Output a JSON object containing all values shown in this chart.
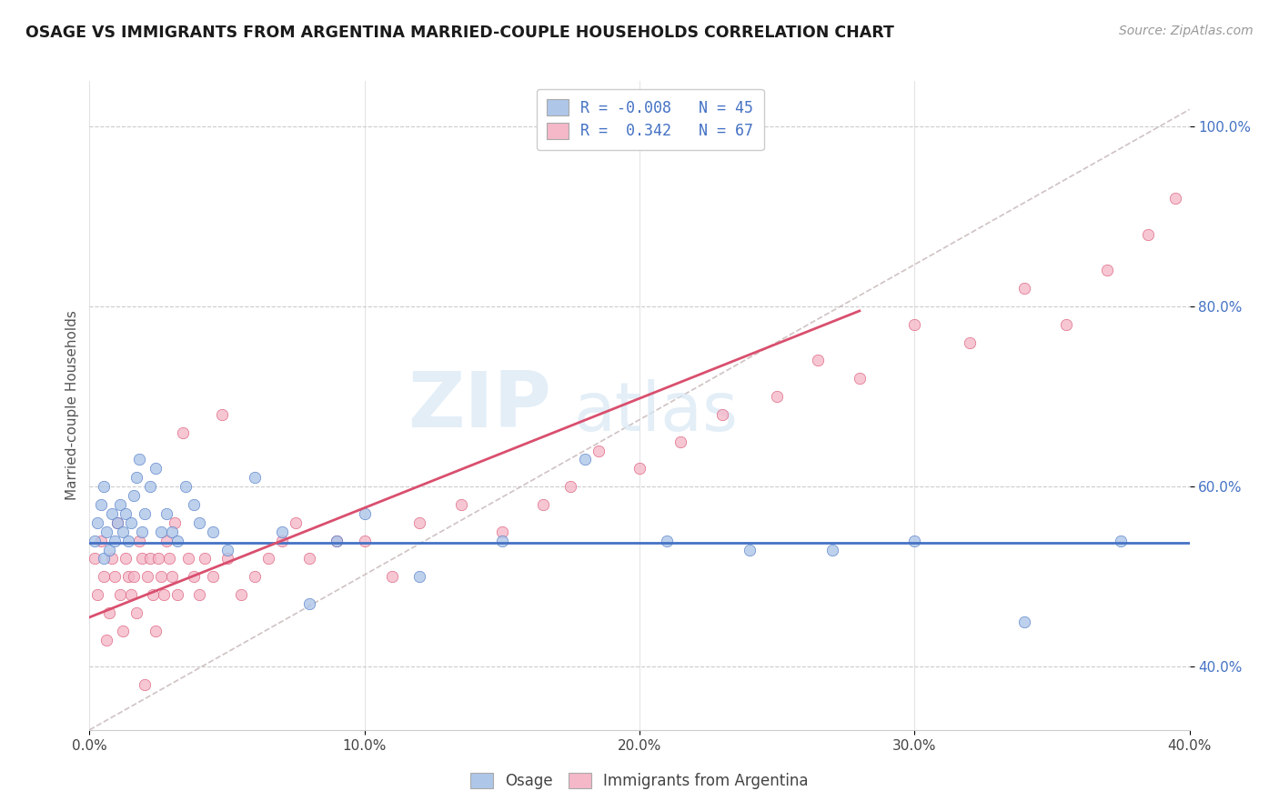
{
  "title": "OSAGE VS IMMIGRANTS FROM ARGENTINA MARRIED-COUPLE HOUSEHOLDS CORRELATION CHART",
  "source_text": "Source: ZipAtlas.com",
  "ylabel": "Married-couple Households",
  "legend_label_1": "Osage",
  "legend_label_2": "Immigrants from Argentina",
  "r1": -0.008,
  "n1": 45,
  "r2": 0.342,
  "n2": 67,
  "color1": "#aec6e8",
  "color2": "#f4b8c8",
  "line1_color": "#4472c4",
  "line2_color": "#d94f6e",
  "diag_color": "#c8b8b8",
  "watermark_zip": "ZIP",
  "watermark_atlas": "atlas",
  "xmin": 0.0,
  "xmax": 0.4,
  "ymin": 0.33,
  "ymax": 1.05,
  "yticks": [
    0.4,
    0.6,
    0.8,
    1.0
  ],
  "ytick_labels": [
    "40.0%",
    "60.0%",
    "80.0%",
    "100.0%"
  ],
  "xticks": [
    0.0,
    0.1,
    0.2,
    0.3,
    0.4
  ],
  "xtick_labels": [
    "0.0%",
    "10.0%",
    "20.0%",
    "30.0%",
    "40.0%"
  ],
  "osage_x": [
    0.002,
    0.003,
    0.004,
    0.005,
    0.005,
    0.006,
    0.007,
    0.008,
    0.009,
    0.01,
    0.011,
    0.012,
    0.013,
    0.014,
    0.015,
    0.016,
    0.017,
    0.018,
    0.019,
    0.02,
    0.022,
    0.024,
    0.026,
    0.028,
    0.03,
    0.032,
    0.035,
    0.038,
    0.04,
    0.045,
    0.05,
    0.06,
    0.07,
    0.08,
    0.09,
    0.1,
    0.12,
    0.15,
    0.18,
    0.21,
    0.24,
    0.27,
    0.3,
    0.34,
    0.375
  ],
  "osage_y": [
    0.54,
    0.56,
    0.58,
    0.52,
    0.6,
    0.55,
    0.53,
    0.57,
    0.54,
    0.56,
    0.58,
    0.55,
    0.57,
    0.54,
    0.56,
    0.59,
    0.61,
    0.63,
    0.55,
    0.57,
    0.6,
    0.62,
    0.55,
    0.57,
    0.55,
    0.54,
    0.6,
    0.58,
    0.56,
    0.55,
    0.53,
    0.61,
    0.55,
    0.47,
    0.54,
    0.57,
    0.5,
    0.54,
    0.63,
    0.54,
    0.53,
    0.53,
    0.54,
    0.45,
    0.54
  ],
  "arg_x": [
    0.002,
    0.003,
    0.004,
    0.005,
    0.006,
    0.007,
    0.008,
    0.009,
    0.01,
    0.011,
    0.012,
    0.013,
    0.014,
    0.015,
    0.016,
    0.017,
    0.018,
    0.019,
    0.02,
    0.021,
    0.022,
    0.023,
    0.024,
    0.025,
    0.026,
    0.027,
    0.028,
    0.029,
    0.03,
    0.031,
    0.032,
    0.034,
    0.036,
    0.038,
    0.04,
    0.042,
    0.045,
    0.048,
    0.05,
    0.055,
    0.06,
    0.065,
    0.07,
    0.075,
    0.08,
    0.09,
    0.1,
    0.11,
    0.12,
    0.135,
    0.15,
    0.165,
    0.175,
    0.185,
    0.2,
    0.215,
    0.23,
    0.25,
    0.265,
    0.28,
    0.3,
    0.32,
    0.34,
    0.355,
    0.37,
    0.385,
    0.395
  ],
  "arg_y": [
    0.52,
    0.48,
    0.54,
    0.5,
    0.43,
    0.46,
    0.52,
    0.5,
    0.56,
    0.48,
    0.44,
    0.52,
    0.5,
    0.48,
    0.5,
    0.46,
    0.54,
    0.52,
    0.38,
    0.5,
    0.52,
    0.48,
    0.44,
    0.52,
    0.5,
    0.48,
    0.54,
    0.52,
    0.5,
    0.56,
    0.48,
    0.66,
    0.52,
    0.5,
    0.48,
    0.52,
    0.5,
    0.68,
    0.52,
    0.48,
    0.5,
    0.52,
    0.54,
    0.56,
    0.52,
    0.54,
    0.54,
    0.5,
    0.56,
    0.58,
    0.55,
    0.58,
    0.6,
    0.64,
    0.62,
    0.65,
    0.68,
    0.7,
    0.74,
    0.72,
    0.78,
    0.76,
    0.82,
    0.78,
    0.84,
    0.88,
    0.92
  ],
  "osage_line_y0": 0.538,
  "osage_line_y1": 0.538,
  "arg_line_x0": 0.0,
  "arg_line_x1": 0.28,
  "arg_line_y0": 0.455,
  "arg_line_y1": 0.795
}
